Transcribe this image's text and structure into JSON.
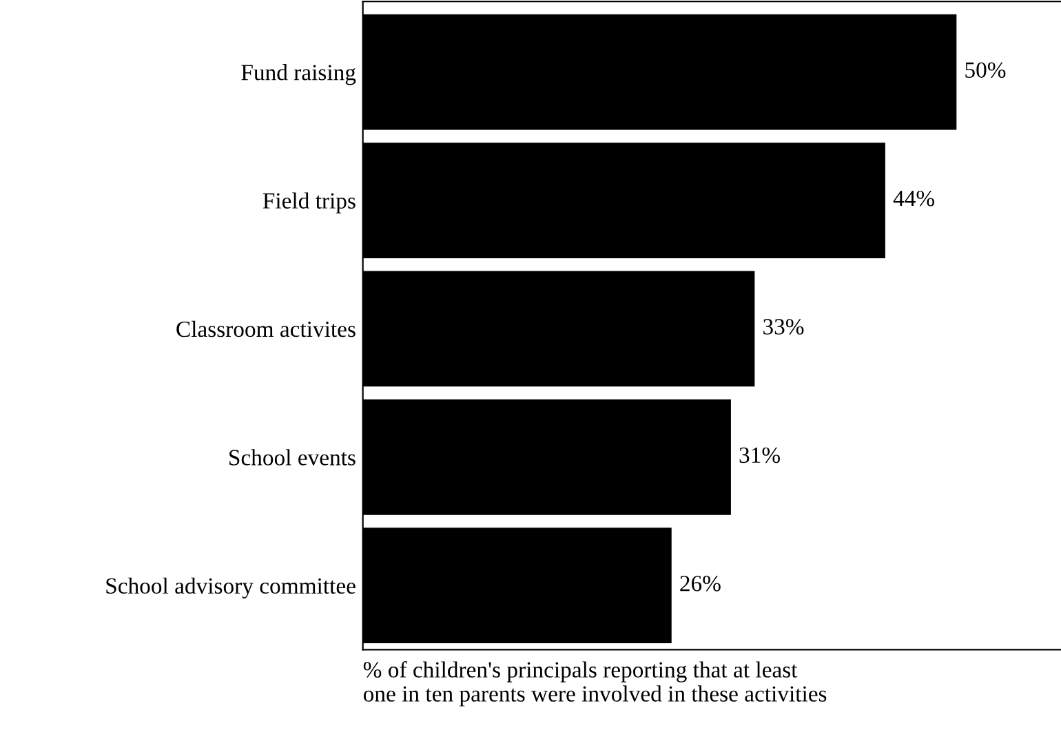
{
  "chart_data": {
    "type": "bar",
    "orientation": "horizontal",
    "categories": [
      "Fund raising",
      "Field trips",
      "Classroom activites",
      "School events",
      "School advisory committee"
    ],
    "values": [
      50,
      44,
      33,
      31,
      26
    ],
    "value_labels": [
      "50%",
      "44%",
      "33%",
      "31%",
      "26%"
    ],
    "color": "#000000",
    "xlabel": "% of children's principals reporting that at least\none in ten parents were involved in these activities",
    "grid": false,
    "legend": false
  }
}
